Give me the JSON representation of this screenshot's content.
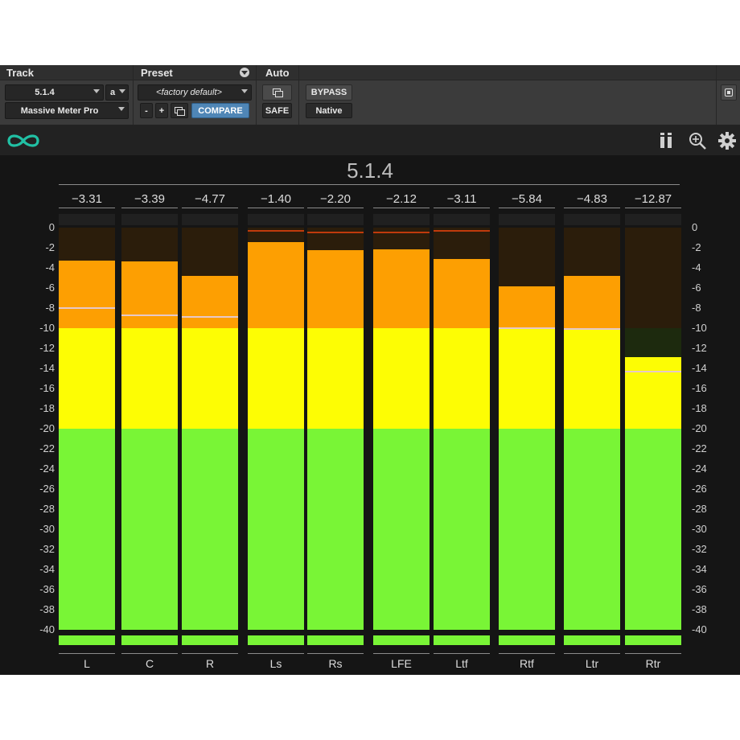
{
  "header": {
    "track_label": "Track",
    "preset_label": "Preset",
    "auto_label": "Auto",
    "track_format": "5.1.4",
    "track_channel": "a",
    "plugin_name": "Massive Meter Pro",
    "preset_name": "<factory default>",
    "minus_label": "-",
    "plus_label": "+",
    "compare_label": "COMPARE",
    "bypass_label": "BYPASS",
    "safe_label": "SAFE",
    "native_label": "Native"
  },
  "toolbar": {
    "logo_icon": "infinity-link-icon",
    "pause_icon": "pause-meters-icon",
    "zoom_icon": "zoom-icon",
    "settings_icon": "gear-icon"
  },
  "meter": {
    "config_title": "5.1.4",
    "scale_min": -40,
    "scale_max": 0,
    "scale_ticks": [
      "0",
      "-2",
      "-4",
      "-6",
      "-8",
      "-10",
      "-12",
      "-14",
      "-16",
      "-18",
      "-20",
      "-22",
      "-24",
      "-26",
      "-28",
      "-30",
      "-32",
      "-34",
      "-36",
      "-38",
      "-40"
    ],
    "colors": {
      "green": "#79f536",
      "yellow": "#fdfd04",
      "orange": "#fd9f02",
      "dim_orange": "#2b1d0b",
      "dim_yellow": "#1d2a0e",
      "clip_red": "#c03a0c"
    },
    "channels": [
      {
        "name": "L",
        "peak": "-3.31",
        "level": -3.31,
        "hold": -7.9
      },
      {
        "name": "C",
        "peak": "-3.39",
        "level": -3.39,
        "hold": -8.6
      },
      {
        "name": "R",
        "peak": "-4.77",
        "level": -4.77,
        "hold": -8.8
      },
      {
        "name": "Ls",
        "peak": "-1.40",
        "level": -1.4,
        "hold": -0.2
      },
      {
        "name": "Rs",
        "peak": "-2.20",
        "level": -2.2,
        "hold": -0.4
      },
      {
        "name": "LFE",
        "peak": "-2.12",
        "level": -2.12,
        "hold": -0.4
      },
      {
        "name": "Ltf",
        "peak": "-3.11",
        "level": -3.11,
        "hold": -0.2
      },
      {
        "name": "Rtf",
        "peak": "-5.84",
        "level": -5.84,
        "hold": -9.9
      },
      {
        "name": "Ltr",
        "peak": "-4.83",
        "level": -4.83,
        "hold": -10.0
      },
      {
        "name": "Rtr",
        "peak": "-12.87",
        "level": -12.87,
        "hold": -14.2
      }
    ]
  }
}
